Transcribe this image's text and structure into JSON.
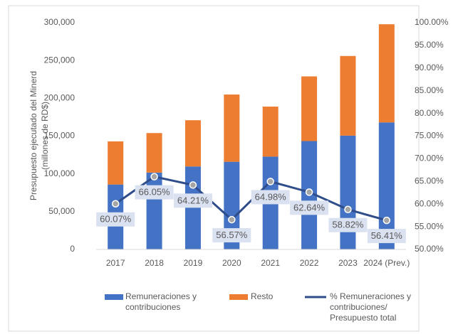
{
  "chart_data": {
    "type": "bar",
    "ylabel": [
      "Presupuesto ejecutado del Minerd",
      "(millones de RD$)"
    ],
    "categories": [
      "2017",
      "2018",
      "2019",
      "2020",
      "2021",
      "2022",
      "2023",
      "2024 (Prev.)"
    ],
    "stacked": true,
    "series": [
      {
        "name": "Remuneraciones y contribuciones",
        "color": "#4472c4",
        "type": "bar",
        "values": [
          85900,
          101700,
          109800,
          116000,
          122800,
          143400,
          150600,
          168100
        ]
      },
      {
        "name": "Resto",
        "color": "#ed7d31",
        "type": "bar",
        "values": [
          57100,
          52300,
          61200,
          89000,
          66200,
          85600,
          105400,
          129900
        ]
      },
      {
        "name": "% Remuneraciones y contribuciones/ Presupuesto total",
        "color": "#2f4d8a",
        "type": "line",
        "axis": "y2",
        "values": [
          60.07,
          66.05,
          64.21,
          56.57,
          64.98,
          62.64,
          58.82,
          56.41
        ],
        "value_labels": [
          "60.07%",
          "66.05%",
          "64.21%",
          "56.57%",
          "64.98%",
          "62.64%",
          "58.82%",
          "56.41%"
        ]
      }
    ],
    "ylim": [
      0,
      300000
    ],
    "yticks": [
      0,
      {
        "value": 50000,
        "label": "50,000"
      },
      {
        "value": 100000,
        "label": "100,000"
      },
      {
        "value": 150000,
        "label": "150,000"
      },
      {
        "value": 200000,
        "label": "200,000"
      },
      {
        "value": 250000,
        "label": "250,000"
      },
      {
        "value": 300000,
        "label": "300,000"
      }
    ],
    "y2lim": [
      50,
      100
    ],
    "y2ticks": [
      {
        "value": 50,
        "label": "50.00%"
      },
      {
        "value": 55,
        "label": "55.00%"
      },
      {
        "value": 60,
        "label": "60.00%"
      },
      {
        "value": 65,
        "label": "65.00%"
      },
      {
        "value": 70,
        "label": "70.00%"
      },
      {
        "value": 75,
        "label": "75.00%"
      },
      {
        "value": 80,
        "label": "80.00%"
      },
      {
        "value": 85,
        "label": "85.00%"
      },
      {
        "value": 90,
        "label": "90.00%"
      },
      {
        "value": 95,
        "label": "95.00%"
      },
      {
        "value": 100,
        "label": "100.00%"
      }
    ],
    "legend": "bottom"
  }
}
